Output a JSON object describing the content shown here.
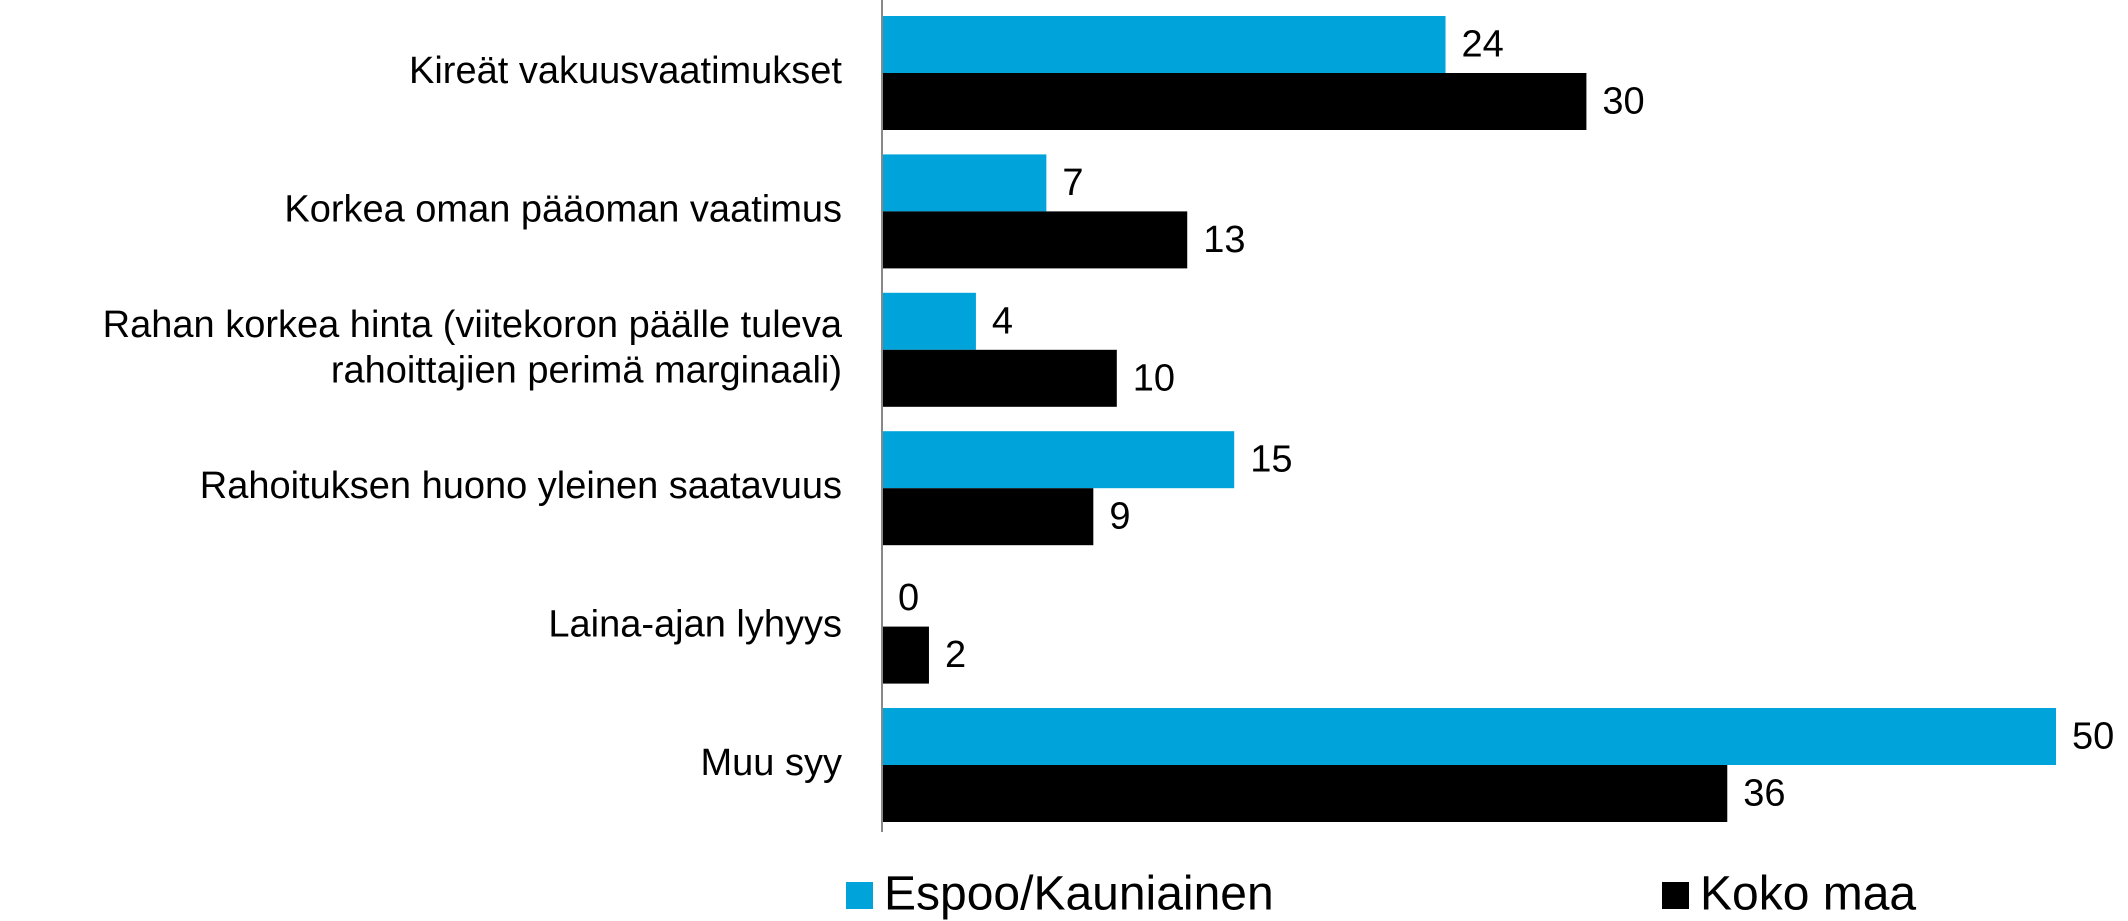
{
  "chart_data": {
    "type": "bar",
    "orientation": "horizontal",
    "categories": [
      "Kireät vakuusvaatimukset",
      "Korkea oman pääoman vaatimus",
      "Rahan korkea hinta (viitekoron päälle tuleva\nrahoittajien perimä marginaali)",
      "Rahoituksen huono yleinen saatavuus",
      "Laina-ajan lyhyys",
      "Muu syy"
    ],
    "series": [
      {
        "name": "Espoo/Kauniainen",
        "color": "#00a3da",
        "values": [
          24,
          7,
          4,
          15,
          0,
          50
        ]
      },
      {
        "name": "Koko maa",
        "color": "#000000",
        "values": [
          30,
          13,
          10,
          9,
          2,
          36
        ]
      }
    ],
    "xlim": [
      0,
      50
    ],
    "legend": "bottom"
  }
}
